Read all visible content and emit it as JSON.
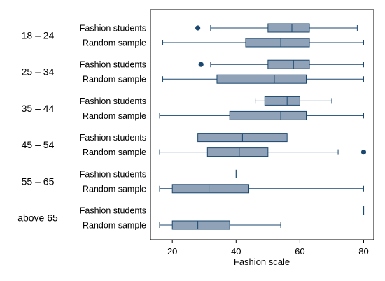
{
  "chart_data": {
    "type": "boxplot",
    "orientation": "horizontal",
    "xlabel": "Fashion scale",
    "xlim": [
      13.5,
      83
    ],
    "xticks": [
      20,
      40,
      60,
      80
    ],
    "grid": false,
    "legend": "none",
    "colors": {
      "box_fill": "#8fa2b7",
      "stroke": "#1a476f",
      "outlier": "#1a476f",
      "frame": "#000000",
      "background": "#ffffff"
    },
    "groups": [
      {
        "label": "18 – 24",
        "boxes": [
          {
            "name": "Fashion students",
            "min": 32,
            "q1": 50,
            "median": 57.5,
            "q3": 63,
            "max": 78,
            "outliers": [
              28
            ]
          },
          {
            "name": "Random sample",
            "min": 17,
            "q1": 43,
            "median": 54,
            "q3": 63,
            "max": 80,
            "outliers": []
          }
        ]
      },
      {
        "label": "25 – 34",
        "boxes": [
          {
            "name": "Fashion students",
            "min": 32,
            "q1": 50,
            "median": 58,
            "q3": 63,
            "max": 80,
            "outliers": [
              29
            ]
          },
          {
            "name": "Random sample",
            "min": 17,
            "q1": 34,
            "median": 52,
            "q3": 62,
            "max": 80,
            "outliers": []
          }
        ]
      },
      {
        "label": "35 – 44",
        "boxes": [
          {
            "name": "Fashion students",
            "min": 46,
            "q1": 49,
            "median": 56,
            "q3": 60,
            "max": 70,
            "outliers": []
          },
          {
            "name": "Random sample",
            "min": 16,
            "q1": 38,
            "median": 54,
            "q3": 62,
            "max": 80,
            "outliers": []
          }
        ]
      },
      {
        "label": "45 – 54",
        "boxes": [
          {
            "name": "Fashion students",
            "min": 28,
            "q1": 28,
            "median": 42,
            "q3": 56,
            "max": 56,
            "outliers": []
          },
          {
            "name": "Random sample",
            "min": 16,
            "q1": 31,
            "median": 41,
            "q3": 50,
            "max": 72,
            "outliers": [
              80
            ]
          }
        ]
      },
      {
        "label": "55 – 65",
        "boxes": [
          {
            "name": "Fashion students",
            "min": 40,
            "q1": 40,
            "median": 40,
            "q3": 40,
            "max": 40,
            "outliers": []
          },
          {
            "name": "Random sample",
            "min": 16,
            "q1": 20,
            "median": 31.5,
            "q3": 44,
            "max": 80,
            "outliers": []
          }
        ]
      },
      {
        "label": "above 65",
        "boxes": [
          {
            "name": "Fashion students",
            "min": 80,
            "q1": 80,
            "median": 80,
            "q3": 80,
            "max": 80,
            "outliers": []
          },
          {
            "name": "Random sample",
            "min": 16,
            "q1": 20,
            "median": 28,
            "q3": 38,
            "max": 54,
            "outliers": []
          }
        ]
      }
    ]
  }
}
